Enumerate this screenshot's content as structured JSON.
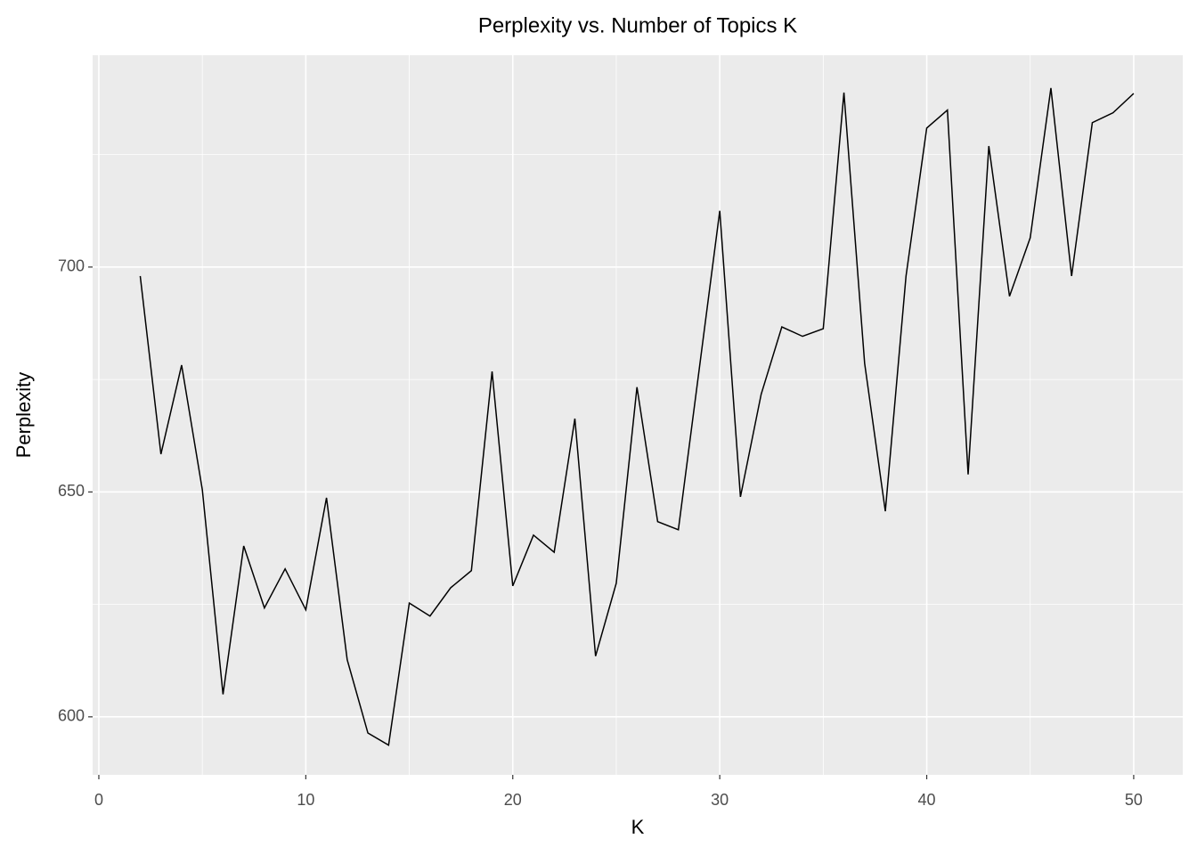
{
  "chart_data": {
    "type": "line",
    "title": "Perplexity vs. Number of Topics K",
    "x_label": "K",
    "y_label": "Perplexity",
    "x": [
      2,
      3,
      4,
      5,
      6,
      7,
      8,
      9,
      10,
      11,
      12,
      13,
      14,
      15,
      16,
      17,
      18,
      19,
      20,
      21,
      22,
      23,
      24,
      25,
      26,
      27,
      28,
      29,
      30,
      31,
      32,
      33,
      34,
      35,
      36,
      37,
      38,
      39,
      40,
      41,
      42,
      43,
      44,
      45,
      46,
      47,
      48,
      49,
      50
    ],
    "values": [
      698,
      658.4,
      678.2,
      650.5,
      605,
      638,
      624.2,
      632.9,
      623.8,
      648.7,
      612.7,
      596.4,
      593.7,
      625.3,
      622.4,
      628.7,
      632.5,
      676.8,
      629.1,
      640.4,
      636.6,
      666.3,
      613.5,
      629.7,
      673.3,
      643.4,
      641.6,
      677,
      712.5,
      648.9,
      671.7,
      686.7,
      684.6,
      686.3,
      738.8,
      678.6,
      645.7,
      698,
      730.9,
      734.9,
      653.9,
      726.9,
      693.5,
      706.5,
      739.8,
      698,
      732.1,
      734.3,
      738.6
    ],
    "color": "#000000",
    "xlim": [
      -0.3,
      52.37
    ],
    "ylim": [
      587.1,
      747.1
    ],
    "xticks": [
      0,
      10,
      20,
      30,
      40,
      50
    ],
    "yticks": [
      600,
      650,
      700
    ],
    "grid": true
  }
}
